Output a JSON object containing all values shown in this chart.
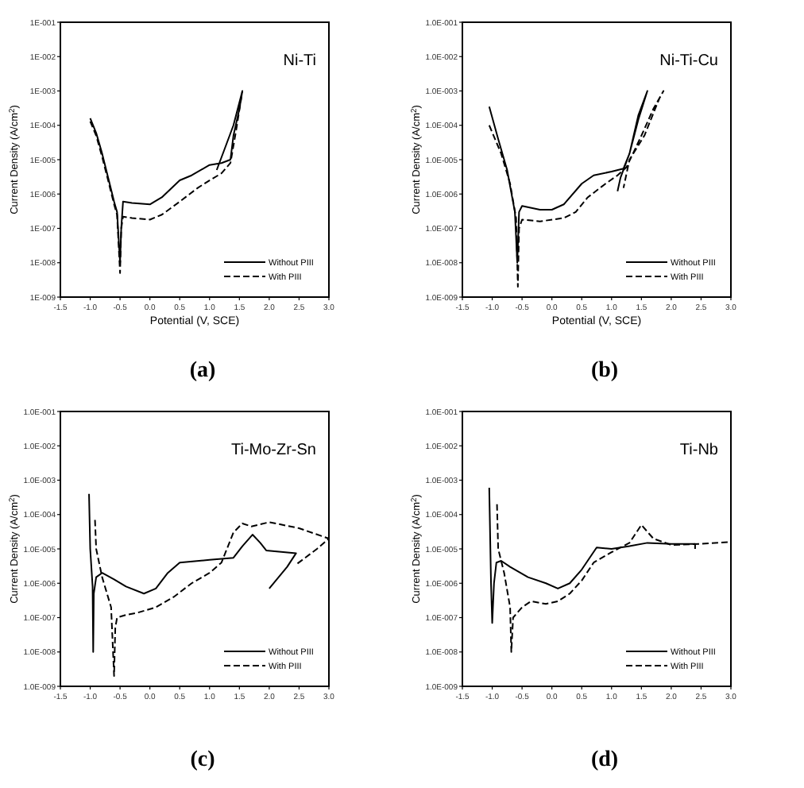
{
  "chart_data": [
    {
      "type": "line",
      "annotations": [
        "Ni-Ti",
        "(a)"
      ],
      "xlabel": "Potential (V, SCE)",
      "ylabel": "Current Density (A/cm$^{2}$)",
      "log": "y",
      "legend": "bottom right",
      "xlim": [
        -1.5,
        3.0
      ],
      "xticks": [
        -1.5,
        {
          "value": -1,
          "label": "-1.0"
        },
        -0.5,
        {
          "value": 0,
          "label": "0.0"
        },
        0.5,
        {
          "value": 1,
          "label": "1.0"
        },
        1.5,
        {
          "value": 2,
          "label": "2.0"
        },
        2.5,
        {
          "value": 3,
          "label": "3.0"
        }
      ],
      "ylim": [
        1e-09,
        0.1
      ],
      "yticks": [
        {
          "value": 1e-09,
          "label": "1E-009"
        },
        {
          "value": 1e-08,
          "label": "1E-008"
        },
        {
          "value": 1e-07,
          "label": "1E-007"
        },
        {
          "value": 1e-06,
          "label": "1E-006"
        },
        {
          "value": 1e-05,
          "label": "1E-005"
        },
        {
          "value": 0.0001,
          "label": "1E-004"
        },
        {
          "value": 0.001,
          "label": "1E-003"
        },
        {
          "value": 0.01,
          "label": "1E-002"
        },
        {
          "value": 0.1,
          "label": "1E-001"
        }
      ],
      "series": [
        {
          "name": "Without PIII",
          "color": "#000000",
          "line_style": "solid",
          "x": [
            -1.0,
            -0.9,
            -0.8,
            -0.7,
            -0.6,
            -0.55,
            -0.5,
            -0.48,
            -0.45,
            -0.3,
            0,
            0.2,
            0.5,
            0.7,
            1.0,
            1.2,
            1.35,
            1.4,
            1.5,
            1.55,
            1.4,
            1.25,
            1.12
          ],
          "values": [
            0.00016,
            6e-05,
            1.5e-05,
            3e-06,
            6e-07,
            3e-07,
            1e-08,
            1e-07,
            6e-07,
            5.5e-07,
            5e-07,
            8e-07,
            2.5e-06,
            3.5e-06,
            7e-06,
            8e-06,
            1e-05,
            5e-05,
            0.0003,
            0.001,
            0.0001,
            2e-05,
            5e-06
          ]
        },
        {
          "name": "With PIII",
          "color": "#000000",
          "line_style": "dashed",
          "x": [
            -1.0,
            -0.9,
            -0.8,
            -0.7,
            -0.6,
            -0.55,
            -0.5,
            -0.48,
            -0.45,
            -0.3,
            0,
            0.2,
            0.5,
            0.8,
            1.0,
            1.2,
            1.35,
            1.45,
            1.55
          ],
          "values": [
            0.00013,
            5e-05,
            1.2e-05,
            2.5e-06,
            5e-07,
            2.5e-07,
            5e-09,
            1e-07,
            2.2e-07,
            2e-07,
            1.8e-07,
            2.5e-07,
            6e-07,
            1.5e-06,
            2.5e-06,
            4e-06,
            8e-06,
            8e-05,
            0.001
          ]
        }
      ]
    },
    {
      "type": "line",
      "annotations": [
        "Ni-Ti-Cu",
        "(b)"
      ],
      "xlabel": "Potential (V, SCE)",
      "ylabel": "Current Density (A/cm$^{2}$)",
      "log": "y",
      "legend": "bottom right",
      "xlim": [
        -1.5,
        3.0
      ],
      "xticks": [
        -1.5,
        {
          "value": -1,
          "label": "-1.0"
        },
        -0.5,
        {
          "value": 0,
          "label": "0.0"
        },
        0.5,
        {
          "value": 1,
          "label": "1.0"
        },
        1.5,
        {
          "value": 2,
          "label": "2.0"
        },
        2.5,
        {
          "value": 3,
          "label": "3.0"
        }
      ],
      "ylim": [
        1e-09,
        0.1
      ],
      "yticks": [
        {
          "value": 1e-09,
          "label": "1.0E-009"
        },
        {
          "value": 1e-08,
          "label": "1.0E-008"
        },
        {
          "value": 1e-07,
          "label": "1.0E-007"
        },
        {
          "value": 1e-06,
          "label": "1.0E-006"
        },
        {
          "value": 1e-05,
          "label": "1.0E-005"
        },
        {
          "value": 0.0001,
          "label": "1.0E-004"
        },
        {
          "value": 0.001,
          "label": "1.0E-003"
        },
        {
          "value": 0.01,
          "label": "1.0E-002"
        },
        {
          "value": 0.1,
          "label": "1.0E-001"
        }
      ],
      "series": [
        {
          "name": "Without PIII",
          "color": "#000000",
          "line_style": "solid",
          "x": [
            -1.05,
            -0.9,
            -0.75,
            -0.62,
            -0.58,
            -0.55,
            -0.5,
            -0.2,
            0,
            0.2,
            0.5,
            0.7,
            1.0,
            1.2,
            1.3,
            1.45,
            1.6,
            1.45,
            1.3,
            1.15,
            1.1
          ],
          "values": [
            0.00035,
            4e-05,
            5e-06,
            3e-07,
            1e-08,
            3e-07,
            4.5e-07,
            3.5e-07,
            3.5e-07,
            5e-07,
            2e-06,
            3.5e-06,
            4.5e-06,
            5.5e-06,
            1.5e-05,
            0.0002,
            0.001,
            0.00015,
            1.5e-05,
            3e-06,
            1.2e-06
          ]
        },
        {
          "name": "With PIII",
          "color": "#000000",
          "line_style": "dashed",
          "x": [
            -1.05,
            -0.85,
            -0.7,
            -0.6,
            -0.57,
            -0.55,
            -0.5,
            -0.2,
            0.2,
            0.4,
            0.6,
            0.9,
            1.1,
            1.25,
            1.5,
            1.7,
            1.87,
            1.8,
            1.55,
            1.3,
            1.2
          ],
          "values": [
            0.0001,
            1.5e-05,
            2e-06,
            2e-07,
            2e-09,
            1e-07,
            1.8e-07,
            1.6e-07,
            2e-07,
            3e-07,
            8e-07,
            2e-06,
            3.5e-06,
            6e-06,
            5e-05,
            0.0003,
            0.001,
            0.0006,
            5e-05,
            1e-05,
            1.5e-06
          ]
        }
      ]
    },
    {
      "type": "line",
      "annotations": [
        "Ti-Mo-Zr-Sn",
        "(c)"
      ],
      "ylabel": "Current Density (A/cm$^{2}$)",
      "log": "y",
      "legend": "bottom right",
      "xlim": [
        -1.5,
        3.0
      ],
      "xticks": [
        -1.5,
        {
          "value": -1,
          "label": "-1.0"
        },
        -0.5,
        {
          "value": 0,
          "label": "0.0"
        },
        0.5,
        {
          "value": 1,
          "label": "1.0"
        },
        1.5,
        {
          "value": 2,
          "label": "2.0"
        },
        2.5,
        {
          "value": 3,
          "label": "3.0"
        }
      ],
      "ylim": [
        1e-09,
        0.1
      ],
      "yticks": [
        {
          "value": 1e-09,
          "label": "1.0E-009"
        },
        {
          "value": 1e-08,
          "label": "1.0E-008"
        },
        {
          "value": 1e-07,
          "label": "1.0E-007"
        },
        {
          "value": 1e-06,
          "label": "1.0E-006"
        },
        {
          "value": 1e-05,
          "label": "1.0E-005"
        },
        {
          "value": 0.0001,
          "label": "1.0E-004"
        },
        {
          "value": 0.001,
          "label": "1.0E-003"
        },
        {
          "value": 0.01,
          "label": "1.0E-002"
        },
        {
          "value": 0.1,
          "label": "1.0E-001"
        }
      ],
      "series": [
        {
          "name": "Without PIII",
          "color": "#000000",
          "line_style": "solid",
          "x": [
            -1.02,
            -1.0,
            -0.96,
            -0.95,
            -0.94,
            -0.9,
            -0.8,
            -0.6,
            -0.4,
            -0.1,
            0.1,
            0.3,
            0.5,
            1.0,
            1.4,
            1.55,
            1.72,
            1.85,
            1.95,
            2.45,
            2.3,
            2.0
          ],
          "values": [
            0.0004,
            1e-05,
            8e-07,
            1e-08,
            5e-07,
            1.5e-06,
            2e-06,
            1.3e-06,
            8e-07,
            5e-07,
            7e-07,
            2e-06,
            4e-06,
            4.8e-06,
            5.5e-06,
            1.2e-05,
            2.6e-05,
            1.5e-05,
            9e-06,
            7.5e-06,
            3e-06,
            7e-07
          ]
        },
        {
          "name": "With PIII",
          "color": "#000000",
          "line_style": "dashed",
          "x": [
            -0.92,
            -0.9,
            -0.8,
            -0.65,
            -0.6,
            -0.58,
            -0.55,
            -0.4,
            -0.2,
            0.1,
            0.4,
            0.7,
            1.0,
            1.2,
            1.4,
            1.55,
            1.7,
            2.0,
            2.5,
            3.0,
            2.8,
            2.45
          ],
          "values": [
            7e-05,
            1e-05,
            1.5e-06,
            2e-07,
            2e-09,
            5e-08,
            1e-07,
            1.2e-07,
            1.4e-07,
            2e-07,
            4e-07,
            1e-06,
            2e-06,
            4e-06,
            3e-05,
            5.5e-05,
            4.5e-05,
            6e-05,
            4e-05,
            2e-05,
            1e-05,
            3.5e-06
          ]
        }
      ]
    },
    {
      "type": "line",
      "annotations": [
        "Ti-Nb",
        "(d)"
      ],
      "ylabel": "Current Density (A/cm$^{2}$)",
      "log": "y",
      "legend": "bottom right",
      "xlim": [
        -1.5,
        3.0
      ],
      "xticks": [
        -1.5,
        {
          "value": -1,
          "label": "-1.0"
        },
        -0.5,
        {
          "value": 0,
          "label": "0.0"
        },
        0.5,
        {
          "value": 1,
          "label": "1.0"
        },
        1.5,
        {
          "value": 2,
          "label": "2.0"
        },
        2.5,
        {
          "value": 3,
          "label": "3.0"
        }
      ],
      "ylim": [
        1e-09,
        0.1
      ],
      "yticks": [
        {
          "value": 1e-09,
          "label": "1.0E-009"
        },
        {
          "value": 1e-08,
          "label": "1.0E-008"
        },
        {
          "value": 1e-07,
          "label": "1.0E-007"
        },
        {
          "value": 1e-06,
          "label": "1.0E-006"
        },
        {
          "value": 1e-05,
          "label": "1.0E-005"
        },
        {
          "value": 0.0001,
          "label": "1.0E-004"
        },
        {
          "value": 0.001,
          "label": "1.0E-003"
        },
        {
          "value": 0.01,
          "label": "1.0E-002"
        },
        {
          "value": 0.1,
          "label": "1.0E-001"
        }
      ],
      "series": [
        {
          "name": "Without PIII",
          "color": "#000000",
          "line_style": "solid",
          "x": [
            -1.05,
            -1.02,
            -1.0,
            -0.97,
            -0.93,
            -0.85,
            -0.7,
            -0.4,
            -0.1,
            0.1,
            0.3,
            0.5,
            0.75,
            1.0,
            1.3,
            1.6,
            2.0,
            2.4,
            2.4
          ],
          "values": [
            0.0006,
            1e-06,
            7e-08,
            1e-06,
            4e-06,
            4.5e-06,
            3e-06,
            1.5e-06,
            1e-06,
            7e-07,
            1e-06,
            2.5e-06,
            1.1e-05,
            1e-05,
            1.2e-05,
            1.5e-05,
            1.4e-05,
            1.4e-05,
            1e-05
          ]
        },
        {
          "name": "With PIII",
          "color": "#000000",
          "line_style": "dashed",
          "x": [
            -0.92,
            -0.9,
            -0.8,
            -0.7,
            -0.68,
            -0.65,
            -0.5,
            -0.35,
            -0.1,
            0.1,
            0.3,
            0.5,
            0.7,
            1.0,
            1.3,
            1.5,
            1.7,
            2.0,
            2.5,
            3.0
          ],
          "values": [
            0.0002,
            1e-05,
            2e-06,
            2e-07,
            1e-08,
            1e-07,
            2e-07,
            3e-07,
            2.5e-07,
            3e-07,
            5e-07,
            1.2e-06,
            4e-06,
            8e-06,
            1.5e-05,
            5e-05,
            2e-05,
            1.3e-05,
            1.4e-05,
            1.6e-05
          ]
        }
      ]
    }
  ]
}
